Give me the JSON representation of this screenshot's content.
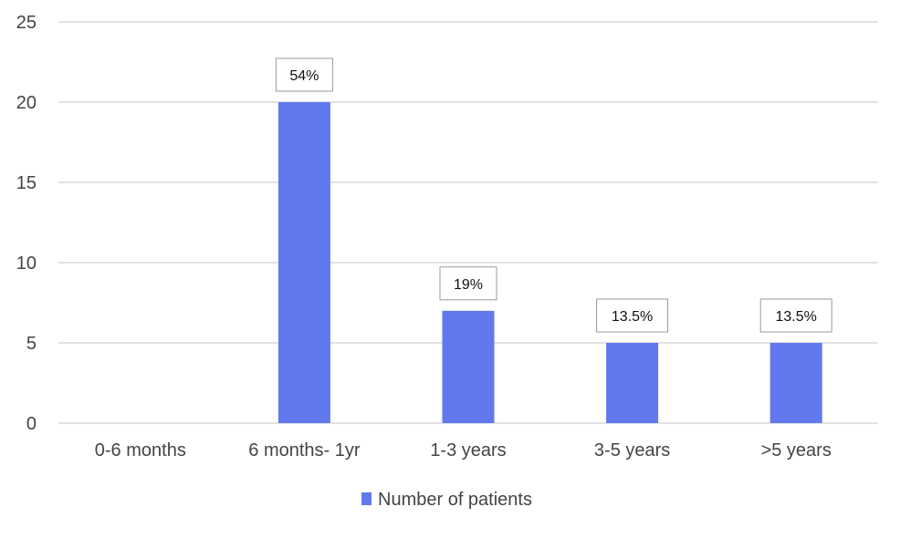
{
  "chart_data": {
    "type": "bar",
    "categories": [
      "0-6 months",
      "6 months- 1yr",
      "1-3 years",
      "3-5 years",
      ">5 years"
    ],
    "series": [
      {
        "name": "Number of patients",
        "values": [
          0,
          20,
          7,
          5,
          5
        ],
        "data_labels": [
          "",
          "54%",
          "19%",
          "13.5%",
          "13.5%"
        ],
        "color": "#6279ed"
      }
    ],
    "yticks": [
      "0",
      "5",
      "10",
      "15",
      "20",
      "25"
    ],
    "ylim": [
      0,
      25
    ],
    "grid": true,
    "legend_position": "bottom"
  },
  "colors": {
    "bar": "#6279ed",
    "grid": "#d9d9d9",
    "label_box_border": "#999999"
  }
}
